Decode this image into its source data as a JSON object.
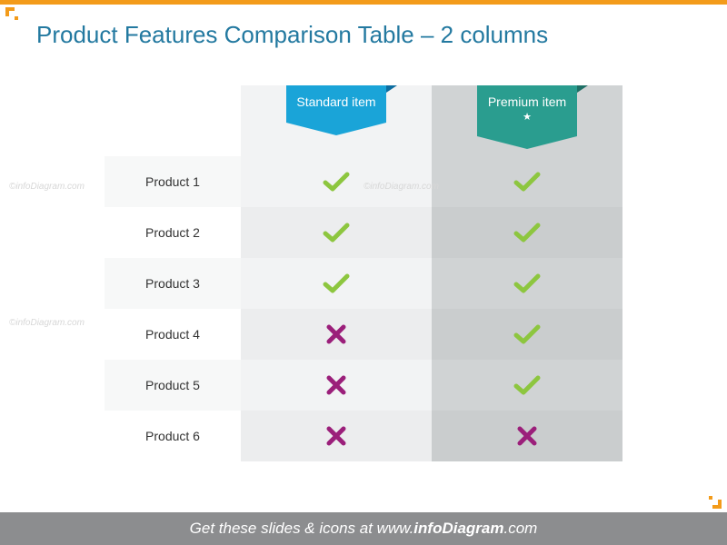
{
  "colors": {
    "top_bar": "#f39b1a",
    "title": "#2379a0",
    "footer_bg": "#8c8d8f",
    "check": "#8dc63f",
    "cross": "#9b1f7a",
    "col_a_bg": "#f2f3f4",
    "col_b_bg": "#d0d3d4",
    "row_label_alt_bg": "#f7f8f8",
    "ribbon_standard": "#1aa4d8",
    "ribbon_standard_dark": "#0d6da0",
    "ribbon_premium": "#2a9d8f",
    "ribbon_premium_dark": "#1e6f65",
    "corner": "#f39b1a"
  },
  "title": "Product Features Comparison Table – 2 columns",
  "columns": {
    "standard": {
      "label": "Standard item",
      "has_star": false
    },
    "premium": {
      "label": "Premium item",
      "has_star": true
    }
  },
  "rows": [
    {
      "label": "Product 1",
      "standard": true,
      "premium": true
    },
    {
      "label": "Product 2",
      "standard": true,
      "premium": true
    },
    {
      "label": "Product 3",
      "standard": true,
      "premium": true
    },
    {
      "label": "Product 4",
      "standard": false,
      "premium": true
    },
    {
      "label": "Product 5",
      "standard": false,
      "premium": true
    },
    {
      "label": "Product 6",
      "standard": false,
      "premium": false
    }
  ],
  "footer": {
    "prefix": "Get these slides & icons at ",
    "site_prefix": "www.",
    "site_bold": "infoDiagram",
    "site_suffix": ".com"
  },
  "watermark": "©infoDiagram.com"
}
